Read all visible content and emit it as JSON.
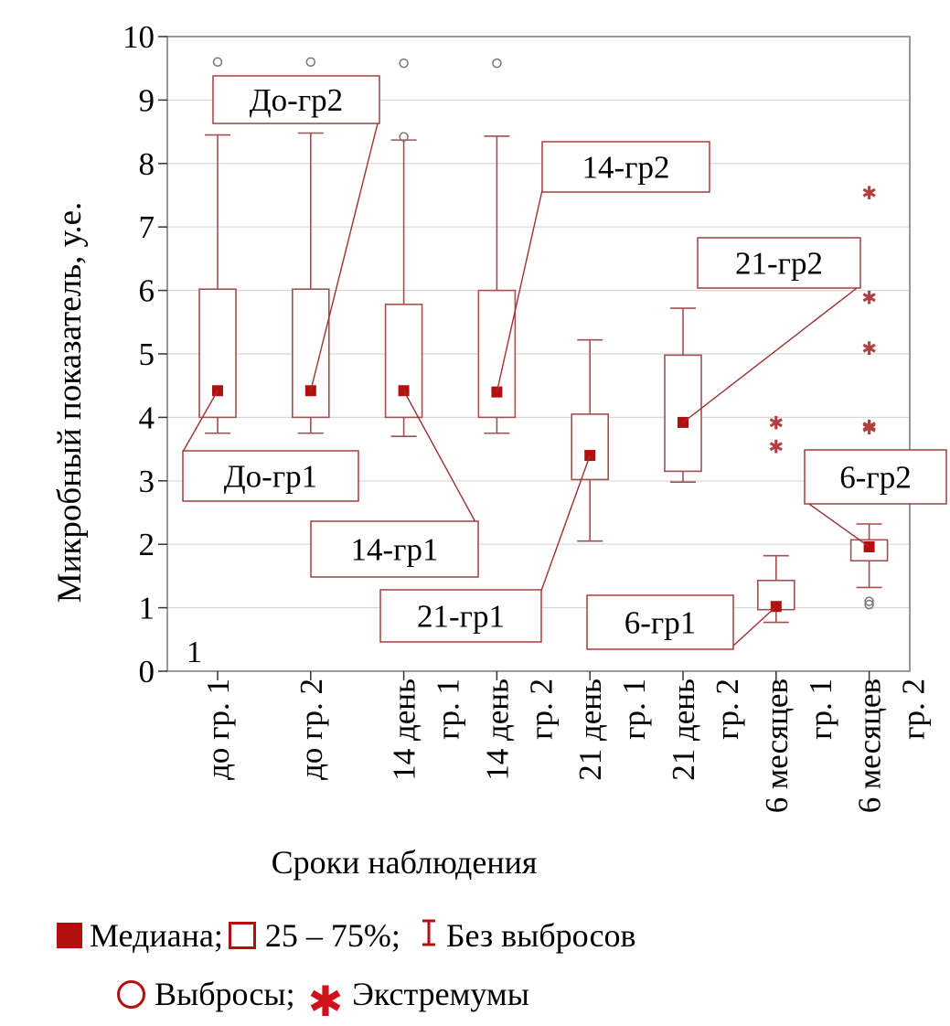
{
  "chart_data": {
    "type": "boxplot",
    "title": "",
    "xlabel": "Сроки наблюдения",
    "ylabel": "Микробный показатель, у.е.",
    "ylim": [
      0,
      10
    ],
    "yticks": [
      "0",
      "1",
      "2",
      "3",
      "4",
      "5",
      "6",
      "7",
      "8",
      "9",
      "10"
    ],
    "panel_label": "1",
    "grid": true,
    "categories": [
      [
        "до гр. 1"
      ],
      [
        "до гр. 2"
      ],
      [
        "14 день",
        "гр. 1"
      ],
      [
        "14 день",
        "гр. 2"
      ],
      [
        "21 день",
        "гр. 1"
      ],
      [
        "21 день",
        "гр. 2"
      ],
      [
        "6 месяцев",
        "гр. 1"
      ],
      [
        "6 месяцев",
        "гр. 2"
      ]
    ],
    "series": [
      {
        "name": "до гр. 1",
        "median": 4.42,
        "q1": 4.0,
        "q3": 6.02,
        "whisker_low": 3.75,
        "whisker_high": 8.45,
        "outliers": [
          9.6
        ],
        "extremes": []
      },
      {
        "name": "до гр. 2",
        "median": 4.42,
        "q1": 4.0,
        "q3": 6.02,
        "whisker_low": 3.75,
        "whisker_high": 8.48,
        "outliers": [
          9.6
        ],
        "extremes": []
      },
      {
        "name": "14 день гр. 1",
        "median": 4.42,
        "q1": 4.0,
        "q3": 5.78,
        "whisker_low": 3.7,
        "whisker_high": 8.37,
        "outliers": [
          9.58,
          8.42
        ],
        "extremes": []
      },
      {
        "name": "14 день гр. 2",
        "median": 4.4,
        "q1": 4.0,
        "q3": 6.0,
        "whisker_low": 3.75,
        "whisker_high": 8.43,
        "outliers": [
          9.58
        ],
        "extremes": []
      },
      {
        "name": "21 день гр. 1",
        "median": 3.4,
        "q1": 3.02,
        "q3": 4.05,
        "whisker_low": 2.05,
        "whisker_high": 5.22,
        "outliers": [],
        "extremes": []
      },
      {
        "name": "21 день гр. 2",
        "median": 3.92,
        "q1": 3.15,
        "q3": 4.98,
        "whisker_low": 2.98,
        "whisker_high": 5.72,
        "outliers": [],
        "extremes": []
      },
      {
        "name": "6 месяцев гр. 1",
        "median": 1.02,
        "q1": 0.97,
        "q3": 1.43,
        "whisker_low": 0.77,
        "whisker_high": 1.82,
        "outliers": [],
        "extremes": [
          3.93,
          3.55
        ]
      },
      {
        "name": "6 месяцев гр. 2",
        "median": 1.96,
        "q1": 1.74,
        "q3": 2.07,
        "whisker_low": 1.32,
        "whisker_high": 2.32,
        "outliers": [
          1.1,
          1.05
        ],
        "extremes": [
          7.55,
          5.9,
          5.1,
          3.87,
          3.85
        ]
      }
    ],
    "annotations": [
      {
        "label": "До-гр2",
        "target": 1,
        "anchor": "top-left"
      },
      {
        "label": "До-гр1",
        "target": 0,
        "anchor": "lower-left"
      },
      {
        "label": "14-гр2",
        "target": 3,
        "anchor": "upper-middle"
      },
      {
        "label": "14-гр1",
        "target": 2,
        "anchor": "lower-left"
      },
      {
        "label": "21-гр2",
        "target": 5,
        "anchor": "upper-right"
      },
      {
        "label": "21-гр1",
        "target": 4,
        "anchor": "bottom-left"
      },
      {
        "label": "6-гр2",
        "target": 7,
        "anchor": "right"
      },
      {
        "label": "6-гр1",
        "target": 6,
        "anchor": "bottom-right"
      }
    ]
  },
  "legend": {
    "median": "Медиана;",
    "box": "25 – 75%;",
    "whisker": "Без выбросов",
    "outliers": "Выбросы;",
    "extremes": "Экстремумы"
  },
  "colors": {
    "accent": "#b30f0f",
    "box_line": "#a05050",
    "grid": "#d8d8d8",
    "extreme_star": "#b04040"
  }
}
